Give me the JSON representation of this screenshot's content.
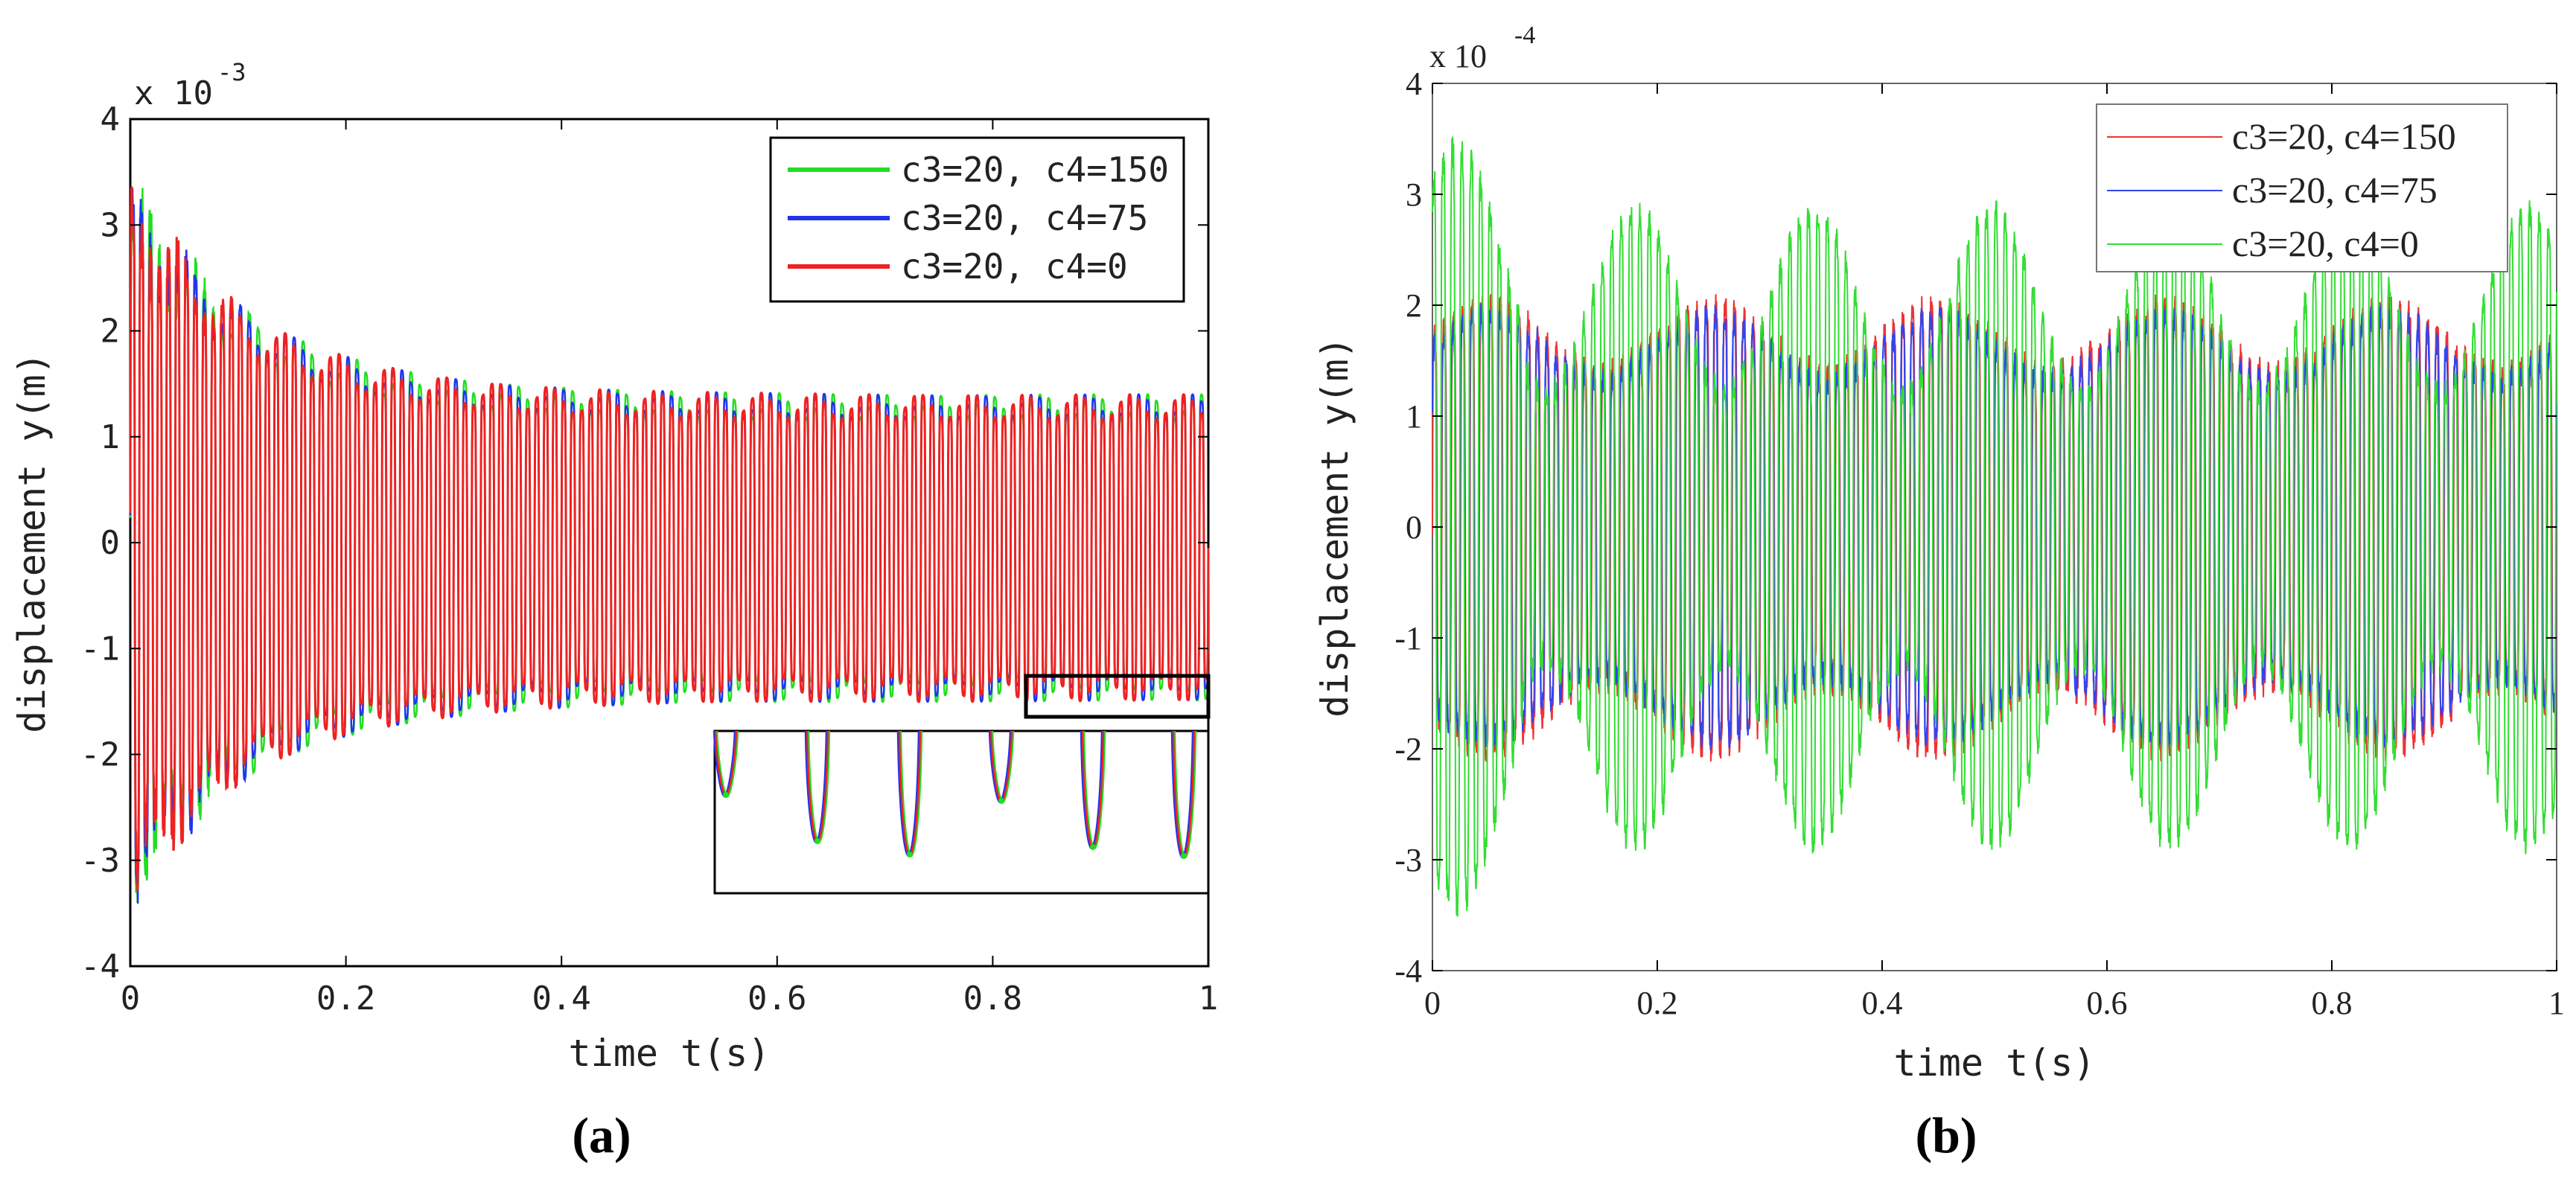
{
  "chart_data": [
    {
      "type": "line",
      "panel_label": "(a)",
      "xlabel": "time t(s)",
      "ylabel": "displacement y(m)",
      "y_exponent": "x 10",
      "y_exponent_power": "-3",
      "xlim": [
        0,
        1
      ],
      "ylim": [
        -4,
        4
      ],
      "x_ticks": [
        "0",
        "0.2",
        "0.4",
        "0.6",
        "0.8",
        "1"
      ],
      "y_ticks": [
        "4",
        "3",
        "2",
        "1",
        "0",
        "-1",
        "-2",
        "-3",
        "-4"
      ],
      "legend_position": "top-right",
      "inset": {
        "xlim": [
          0.83,
          1.0
        ],
        "ylim": [
          -1.6,
          -1.25
        ],
        "description_shown": "zoom box"
      },
      "series": [
        {
          "name": "c3=20, c4=150",
          "color": "#22dd22",
          "amp_start": 3.3,
          "amp_end": 1.45,
          "offset_end": -0.05,
          "cycles": 120
        },
        {
          "name": "c3=20, c4=75",
          "color": "#2233ee",
          "amp_start": 3.3,
          "amp_end": 1.45,
          "offset_end": -0.05,
          "cycles": 120
        },
        {
          "name": "c3=20, c4=0",
          "color": "#ee2222",
          "amp_start": 3.3,
          "amp_end": 1.45,
          "offset_end": -0.05,
          "cycles": 120
        }
      ]
    },
    {
      "type": "line",
      "panel_label": "(b)",
      "xlabel": "time t(s)",
      "ylabel": "displacement y(m)",
      "y_exponent": "x 10",
      "y_exponent_power": "-4",
      "xlim": [
        0,
        1
      ],
      "ylim": [
        -4,
        4
      ],
      "x_ticks": [
        "0",
        "0.2",
        "0.4",
        "0.6",
        "0.8",
        "1"
      ],
      "y_ticks": [
        "4",
        "3",
        "2",
        "1",
        "0",
        "-1",
        "-2",
        "-3",
        "-4"
      ],
      "legend_position": "top-right",
      "series": [
        {
          "name": "c3=20, c4=150",
          "color": "#ee3333",
          "amp": 2.0,
          "cycles": 120
        },
        {
          "name": "c3=20, c4=75",
          "color": "#3344ee",
          "amp": 1.9,
          "cycles": 120
        },
        {
          "name": "c3=20, c4=0",
          "color": "#33dd33",
          "amp": 2.7,
          "cycles": 120
        }
      ]
    }
  ]
}
